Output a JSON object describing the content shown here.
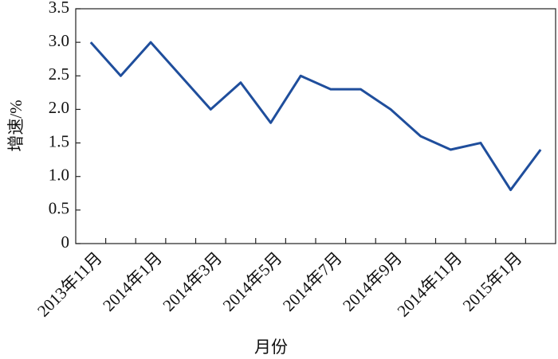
{
  "chart_data": {
    "type": "line",
    "x_label": "月份",
    "y_label": "增速/%",
    "categories": [
      "2013年11月",
      null,
      "2014年1月",
      null,
      "2014年3月",
      null,
      "2014年5月",
      null,
      "2014年7月",
      null,
      "2014年9月",
      null,
      "2014年11月",
      null,
      "2015年1月",
      null
    ],
    "values": [
      3.0,
      2.5,
      3.0,
      2.5,
      2.0,
      2.4,
      1.8,
      2.5,
      2.3,
      2.3,
      2.0,
      1.6,
      1.4,
      1.5,
      0.8,
      1.4
    ],
    "color": "#1f4e9c",
    "ylim": [
      0,
      3.5
    ],
    "yticks": [
      0,
      0.5,
      {
        "value": 1,
        "label": "1.0"
      },
      1.5,
      {
        "value": 2,
        "label": "2.0"
      },
      2.5,
      {
        "value": 3,
        "label": "3.0"
      },
      3.5
    ]
  }
}
